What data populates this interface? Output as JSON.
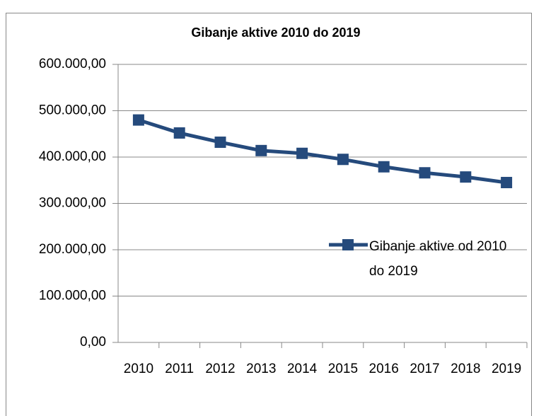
{
  "chart_data": {
    "type": "line",
    "title": "Gibanje aktive 2010 do 2019",
    "categories": [
      "2010",
      "2011",
      "2012",
      "2013",
      "2014",
      "2015",
      "2016",
      "2017",
      "2018",
      "2019"
    ],
    "series": [
      {
        "name": "Gibanje aktive od 2010 do 2019",
        "color": "#254a7c",
        "values": [
          480000,
          452000,
          432000,
          414000,
          408000,
          395000,
          379000,
          366000,
          357000,
          345000
        ]
      }
    ],
    "ylim": [
      0,
      600000
    ],
    "yticks": [
      {
        "value": 0,
        "label": "0,00"
      },
      {
        "value": 100000,
        "label": "100.000,00"
      },
      {
        "value": 200000,
        "label": "200.000,00"
      },
      {
        "value": 300000,
        "label": "300.000,00"
      },
      {
        "value": 400000,
        "label": "400.000,00"
      },
      {
        "value": 500000,
        "label": "500.000,00"
      },
      {
        "value": 600000,
        "label": "600.000,00"
      }
    ],
    "grid": true
  }
}
